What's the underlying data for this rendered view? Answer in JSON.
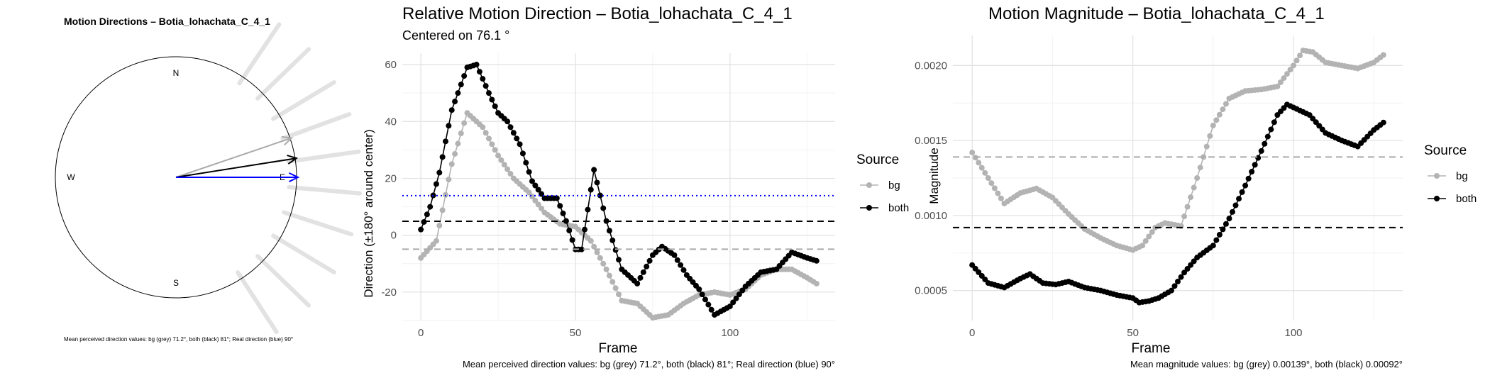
{
  "panels": {
    "compass": {
      "title": "Motion Directions – Botia_lohachata_C_4_1",
      "labels": {
        "n": "N",
        "s": "S",
        "e": "E",
        "w": "W"
      },
      "caption": "Mean perceived direction values: bg (grey) 71.2°, both (black) 81°; Real direction (blue) 90°",
      "arrows": [
        {
          "name": "bg",
          "angle_deg": 71.2,
          "color": "#aaaaaa"
        },
        {
          "name": "both",
          "angle_deg": 81,
          "color": "#000000"
        },
        {
          "name": "real",
          "angle_deg": 90,
          "color": "#0000ff"
        }
      ],
      "background_ray_angles_deg": [
        34,
        46,
        59,
        70,
        82,
        95,
        108,
        121,
        134,
        147
      ]
    },
    "direction": {
      "title": "Relative Motion Direction – Botia_lohachata_C_4_1",
      "subtitle": "Centered on  76.1 °",
      "xlabel": "Frame",
      "ylabel": "Direction (±180° around center)",
      "legend_title": "Source",
      "caption": "Mean perceived direction values: bg (grey) 71.2°, both (black) 81°; Real direction (blue) 90°"
    },
    "magnitude": {
      "title": "Motion Magnitude – Botia_lohachata_C_4_1",
      "xlabel": "Frame",
      "ylabel": "Magnitude",
      "legend_title": "Source",
      "caption": "Mean magnitude values: bg (grey) 0.00139°, both (black) 0.00092°"
    }
  },
  "chart_data": [
    {
      "type": "line",
      "title": "Relative Motion Direction – Botia_lohachata_C_4_1",
      "xlabel": "Frame",
      "ylabel": "Direction (±180° around center)",
      "xlim": [
        -6,
        134
      ],
      "ylim": [
        -30,
        64
      ],
      "xticks": [
        0,
        50,
        100
      ],
      "yticks": [
        -20,
        0,
        20,
        40,
        60
      ],
      "grid": true,
      "legend": "right",
      "series": [
        {
          "name": "bg",
          "color": "#b3b3b3",
          "x": [
            0,
            5,
            10,
            15,
            20,
            25,
            30,
            35,
            40,
            45,
            50,
            55,
            60,
            65,
            70,
            75,
            80,
            85,
            90,
            95,
            100,
            105,
            110,
            115,
            120,
            125,
            128
          ],
          "y": [
            -8,
            -2,
            25,
            43,
            38,
            28,
            20,
            15,
            8,
            4,
            3,
            -2,
            -12,
            -23,
            -24,
            -29,
            -28,
            -24,
            -21,
            -20,
            -21,
            -19,
            -14,
            -12,
            -12,
            -15,
            -17
          ]
        },
        {
          "name": "both",
          "color": "#000000",
          "x": [
            0,
            3,
            6,
            10,
            15,
            18,
            22,
            25,
            28,
            32,
            36,
            40,
            44,
            47,
            50,
            52,
            56,
            60,
            65,
            70,
            75,
            78,
            82,
            86,
            90,
            95,
            100,
            105,
            110,
            115,
            120,
            125,
            128
          ],
          "y": [
            2,
            10,
            22,
            44,
            59,
            60,
            50,
            43,
            40,
            32,
            19,
            13,
            13,
            5,
            -5,
            -5,
            23,
            5,
            -12,
            -17,
            -7,
            -4,
            -7,
            -14,
            -19,
            -28,
            -25,
            -18,
            -13,
            -12,
            -6,
            -8,
            -9
          ]
        }
      ],
      "reference_lines": [
        {
          "name": "real (blue)",
          "y": 13.9,
          "style": "dotted",
          "color": "#0000ff"
        },
        {
          "name": "both (black)",
          "y": 4.9,
          "style": "dashed",
          "color": "#000000"
        },
        {
          "name": "bg (grey)",
          "y": -4.9,
          "style": "dashed",
          "color": "#aaaaaa"
        }
      ]
    },
    {
      "type": "line",
      "title": "Motion Magnitude – Botia_lohachata_C_4_1",
      "xlabel": "Frame",
      "ylabel": "Magnitude",
      "xlim": [
        -6,
        134
      ],
      "ylim": [
        0.0003,
        0.0022
      ],
      "xticks": [
        0,
        50,
        100
      ],
      "yticks": [
        0.0005,
        0.001,
        0.0015,
        0.002
      ],
      "ytick_labels": [
        "0.0005",
        "0.0010",
        "0.0015",
        "0.0020"
      ],
      "grid": true,
      "legend": "right",
      "series": [
        {
          "name": "bg",
          "color": "#b3b3b3",
          "x": [
            0,
            5,
            10,
            15,
            20,
            25,
            30,
            35,
            40,
            45,
            50,
            53,
            57,
            60,
            65,
            70,
            75,
            80,
            85,
            90,
            95,
            100,
            103,
            106,
            110,
            115,
            120,
            125,
            128
          ],
          "y": [
            0.00142,
            0.00125,
            0.00108,
            0.00115,
            0.00118,
            0.00112,
            0.00101,
            0.00091,
            0.00085,
            0.0008,
            0.00077,
            0.0008,
            0.00092,
            0.00095,
            0.00093,
            0.00125,
            0.0016,
            0.00178,
            0.00183,
            0.00184,
            0.00186,
            0.002,
            0.0021,
            0.00209,
            0.00202,
            0.002,
            0.00198,
            0.00202,
            0.00207
          ]
        },
        {
          "name": "both",
          "color": "#000000",
          "x": [
            0,
            5,
            10,
            15,
            18,
            22,
            26,
            30,
            35,
            40,
            45,
            50,
            52,
            55,
            58,
            62,
            66,
            70,
            75,
            80,
            85,
            90,
            95,
            98,
            100,
            105,
            110,
            115,
            120,
            125,
            128
          ],
          "y": [
            0.00067,
            0.00055,
            0.00052,
            0.00058,
            0.00061,
            0.00055,
            0.00054,
            0.00056,
            0.00052,
            0.0005,
            0.00047,
            0.00045,
            0.00042,
            0.00043,
            0.00045,
            0.0005,
            0.00062,
            0.00072,
            0.0008,
            0.00098,
            0.0012,
            0.00143,
            0.00167,
            0.00174,
            0.00172,
            0.00167,
            0.00155,
            0.0015,
            0.00146,
            0.00157,
            0.00162
          ]
        }
      ],
      "reference_lines": [
        {
          "name": "bg (grey)",
          "y": 0.00139,
          "style": "dashed",
          "color": "#aaaaaa"
        },
        {
          "name": "both (black)",
          "y": 0.00092,
          "style": "dashed",
          "color": "#000000"
        }
      ]
    }
  ]
}
